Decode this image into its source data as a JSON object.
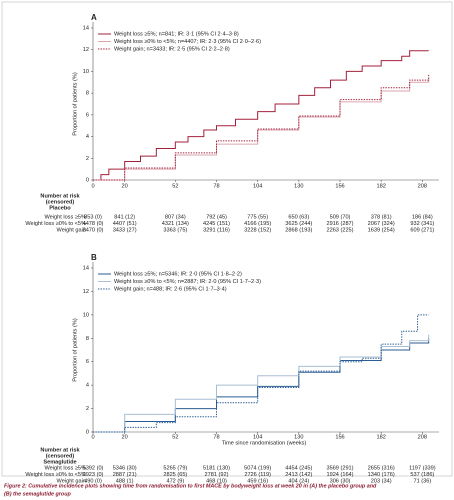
{
  "chart_data": [
    {
      "type": "line",
      "title": "A",
      "ylabel": "Proportion of patients (%)",
      "xlim": [
        0,
        216
      ],
      "ylim": [
        0,
        14
      ],
      "xticks": [
        0,
        20,
        52,
        78,
        104,
        130,
        156,
        182,
        208
      ],
      "yticks": [
        0,
        2,
        4,
        6,
        8,
        10,
        12,
        14
      ],
      "series": [
        {
          "name": "Weight loss ≥5%; n=841; IR: 3·1 (95% CI 2·4–3·8)",
          "color": "#a3203a",
          "style": "solid",
          "x": [
            0,
            5,
            10,
            20,
            30,
            40,
            52,
            60,
            70,
            78,
            90,
            104,
            115,
            130,
            140,
            150,
            160,
            170,
            182,
            195,
            200,
            212
          ],
          "values": [
            0,
            0.5,
            1.0,
            1.7,
            2.2,
            2.9,
            3.5,
            4.0,
            4.6,
            5.0,
            5.6,
            6.3,
            7.0,
            7.8,
            8.5,
            9.2,
            10.0,
            10.5,
            11.0,
            11.4,
            11.9,
            11.9
          ]
        },
        {
          "name": "Weight loss ≥0% to <5%; n=4407; IR: 2·3 (95% CI 2·0–2·6)",
          "color": "#d9a6ae",
          "style": "solid",
          "x": [
            0,
            20,
            52,
            78,
            104,
            130,
            156,
            182,
            200,
            212
          ],
          "values": [
            0,
            1.0,
            2.3,
            3.3,
            4.6,
            5.8,
            7.2,
            8.2,
            9.0,
            9.4
          ]
        },
        {
          "name": "Weight gain; n=3433; IR: 2·5 (95% CI 2·2–2·8)",
          "color": "#a3203a",
          "style": "dotted",
          "x": [
            0,
            20,
            52,
            78,
            104,
            130,
            156,
            182,
            200,
            212
          ],
          "values": [
            0,
            1.1,
            2.5,
            3.6,
            4.7,
            5.9,
            7.4,
            8.5,
            9.2,
            9.8
          ]
        }
      ],
      "risk_table": {
        "header": "Number at risk",
        "subheader": "(censored)",
        "group": "Placebo",
        "rows": [
          {
            "label": "Weight loss ≥5%",
            "values": [
              "853 (0)",
              "841 (12)",
              "807 (34)",
              "792 (45)",
              "775 (55)",
              "650 (63)",
              "509 (70)",
              "378 (81)",
              "186 (84)"
            ]
          },
          {
            "label": "Weight loss ≥0% to <5%",
            "values": [
              "4478 (0)",
              "4407 (51)",
              "4321 (134)",
              "4245 (151)",
              "4166 (195)",
              "3625 (244)",
              "2916 (287)",
              "2067 (324)",
              "932 (341)"
            ]
          },
          {
            "label": "Weight gain",
            "values": [
              "3470 (0)",
              "3433 (27)",
              "3363 (75)",
              "3291 (116)",
              "3228 (152)",
              "2868 (193)",
              "2263 (225)",
              "1639 (254)",
              "609 (271)"
            ]
          }
        ]
      }
    },
    {
      "type": "line",
      "title": "B",
      "ylabel": "Proportion of patients (%)",
      "xlabel": "Time since randomisation (weeks)",
      "xlim": [
        0,
        216
      ],
      "ylim": [
        0,
        14
      ],
      "xticks": [
        0,
        20,
        52,
        78,
        104,
        130,
        156,
        182,
        208
      ],
      "yticks": [
        0,
        2,
        4,
        6,
        8,
        10,
        12,
        14
      ],
      "series": [
        {
          "name": "Weight loss ≥5%; n=5346; IR: 2·0 (95% CI 1·8–2·2)",
          "color": "#2a5d95",
          "style": "solid",
          "x": [
            0,
            20,
            52,
            78,
            104,
            130,
            156,
            182,
            200,
            212
          ],
          "values": [
            0,
            0.9,
            2.0,
            3.0,
            3.9,
            5.1,
            6.1,
            7.0,
            7.6,
            8.0
          ]
        },
        {
          "name": "Weight loss ≥0% to <5%; n=2887; IR: 2·0 (95% CI 1·7–2·3)",
          "color": "#a9bed3",
          "style": "solid",
          "x": [
            0,
            20,
            52,
            78,
            104,
            130,
            156,
            182,
            200,
            212
          ],
          "values": [
            0,
            1.5,
            2.8,
            4.0,
            4.8,
            5.6,
            6.4,
            7.3,
            7.8,
            8.3
          ]
        },
        {
          "name": "Weight gain; n=488; IR: 2·6 (95% CI 1·7–3·4)",
          "color": "#2a5d95",
          "style": "dotted",
          "x": [
            0,
            20,
            40,
            52,
            78,
            104,
            130,
            156,
            170,
            182,
            195,
            205,
            212
          ],
          "values": [
            0,
            0.4,
            0.8,
            1.3,
            2.5,
            3.8,
            5.2,
            6.0,
            6.3,
            7.5,
            8.6,
            10.0,
            10.0
          ]
        }
      ],
      "risk_table": {
        "header": "Number at risk",
        "subheader": "(censored)",
        "group": "Semaglutide",
        "rows": [
          {
            "label": "Weight loss ≥5%",
            "values": [
              "5392 (0)",
              "5346 (30)",
              "5265 (79)",
              "5181 (130)",
              "5074 (199)",
              "4454 (245)",
              "3569 (291)",
              "2655 (316)",
              "1197 (339)"
            ]
          },
          {
            "label": "Weight loss ≥0% to <5%",
            "values": [
              "2923 (0)",
              "2887 (21)",
              "2825 (65)",
              "2781 (92)",
              "2726 (119)",
              "2413 (142)",
              "1924 (164)",
              "1340 (176)",
              "537 (186)"
            ]
          },
          {
            "label": "Weight gain",
            "values": [
              "490 (0)",
              "488 (1)",
              "472 (9)",
              "468 (10)",
              "459 (16)",
              "404 (24)",
              "306 (30)",
              "203 (34)",
              "71 (36)"
            ]
          }
        ]
      }
    }
  ],
  "caption": [
    "Figure 2: Cumulative incidence plots showing time from randomisation to first MACE by bodyweight loss at week 20 in (A) the placebo group and",
    "(B) the semaglutide group"
  ]
}
